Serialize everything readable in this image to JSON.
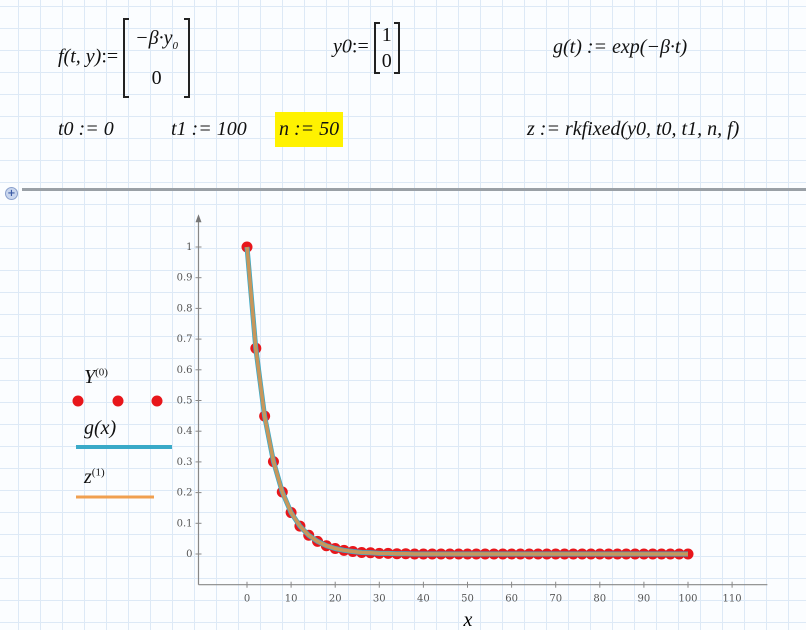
{
  "worksheet": {
    "f_def": {
      "lhs": "f(t, y)",
      "assign": ":=",
      "row1": "−β·y",
      "row1_sub": "0",
      "row2": "0"
    },
    "y0_def": {
      "lhs": "y0",
      "assign": ":=",
      "row1": "1",
      "row2": "0"
    },
    "g_def": "g(t) := exp(−β·t)",
    "t0_def": "t0 := 0",
    "t1_def": "t1 := 100",
    "n_def": "n := 50",
    "z_def": "z := rkfixed(y0, t0, t1, n, f)",
    "highlight_color": "#fff200"
  },
  "region_marker": "+",
  "legend": {
    "items": [
      {
        "label": "Y",
        "sup": "(0)",
        "style": "points",
        "color": "#e8161b"
      },
      {
        "label": "g(x)",
        "sup": "",
        "style": "line",
        "color": "#3aaac8"
      },
      {
        "label": "z",
        "sup": "(1)",
        "style": "line",
        "color": "#f0a050"
      }
    ]
  },
  "chart_data": {
    "type": "line",
    "xlabel": "x",
    "ylabel": "",
    "xlim": [
      -11,
      118
    ],
    "ylim": [
      -0.1,
      1.1
    ],
    "xticks": [
      "0",
      "10",
      "20",
      "30",
      "40",
      "50",
      "60",
      "70",
      "80",
      "90",
      "100",
      "110"
    ],
    "yticks": [
      "0",
      "0.1",
      "0.2",
      "0.3",
      "0.4",
      "0.5",
      "0.6",
      "0.7",
      "0.8",
      "0.9",
      "1"
    ],
    "grid": true,
    "x": [
      0,
      2,
      4,
      6,
      8,
      10,
      12,
      14,
      16,
      18,
      20,
      22,
      24,
      26,
      28,
      30,
      32,
      34,
      36,
      38,
      40,
      42,
      44,
      46,
      48,
      50,
      52,
      54,
      56,
      58,
      60,
      62,
      64,
      66,
      68,
      70,
      72,
      74,
      76,
      78,
      80,
      82,
      84,
      86,
      88,
      90,
      92,
      94,
      96,
      98,
      100
    ],
    "series": [
      {
        "name": "Y(0)",
        "style": "points",
        "color": "#e8161b",
        "values": [
          1,
          0.67,
          0.449,
          0.301,
          0.202,
          0.135,
          0.091,
          0.061,
          0.041,
          0.027,
          0.018,
          0.012,
          0.008,
          0.005,
          0.004,
          0.002,
          0.002,
          0.001,
          0.001,
          0,
          0,
          0,
          0,
          0,
          0,
          0,
          0,
          0,
          0,
          0,
          0,
          0,
          0,
          0,
          0,
          0,
          0,
          0,
          0,
          0,
          0,
          0,
          0,
          0,
          0,
          0,
          0,
          0,
          0,
          0,
          0
        ]
      },
      {
        "name": "g(x)",
        "style": "line",
        "color": "#3aaac8",
        "values": [
          1,
          0.67,
          0.449,
          0.301,
          0.202,
          0.135,
          0.091,
          0.061,
          0.041,
          0.027,
          0.018,
          0.012,
          0.008,
          0.005,
          0.004,
          0.002,
          0.002,
          0.001,
          0.001,
          0,
          0,
          0,
          0,
          0,
          0,
          0,
          0,
          0,
          0,
          0,
          0,
          0,
          0,
          0,
          0,
          0,
          0,
          0,
          0,
          0,
          0,
          0,
          0,
          0,
          0,
          0,
          0,
          0,
          0,
          0,
          0
        ]
      },
      {
        "name": "z(1)",
        "style": "line",
        "color": "#c8965a",
        "values": [
          1,
          0.67,
          0.449,
          0.301,
          0.202,
          0.135,
          0.091,
          0.061,
          0.041,
          0.027,
          0.018,
          0.012,
          0.008,
          0.005,
          0.004,
          0.002,
          0.002,
          0.001,
          0.001,
          0,
          0,
          0,
          0,
          0,
          0,
          0,
          0,
          0,
          0,
          0,
          0,
          0,
          0,
          0,
          0,
          0,
          0,
          0,
          0,
          0,
          0,
          0,
          0,
          0,
          0,
          0,
          0,
          0,
          0,
          0,
          0
        ]
      }
    ]
  }
}
